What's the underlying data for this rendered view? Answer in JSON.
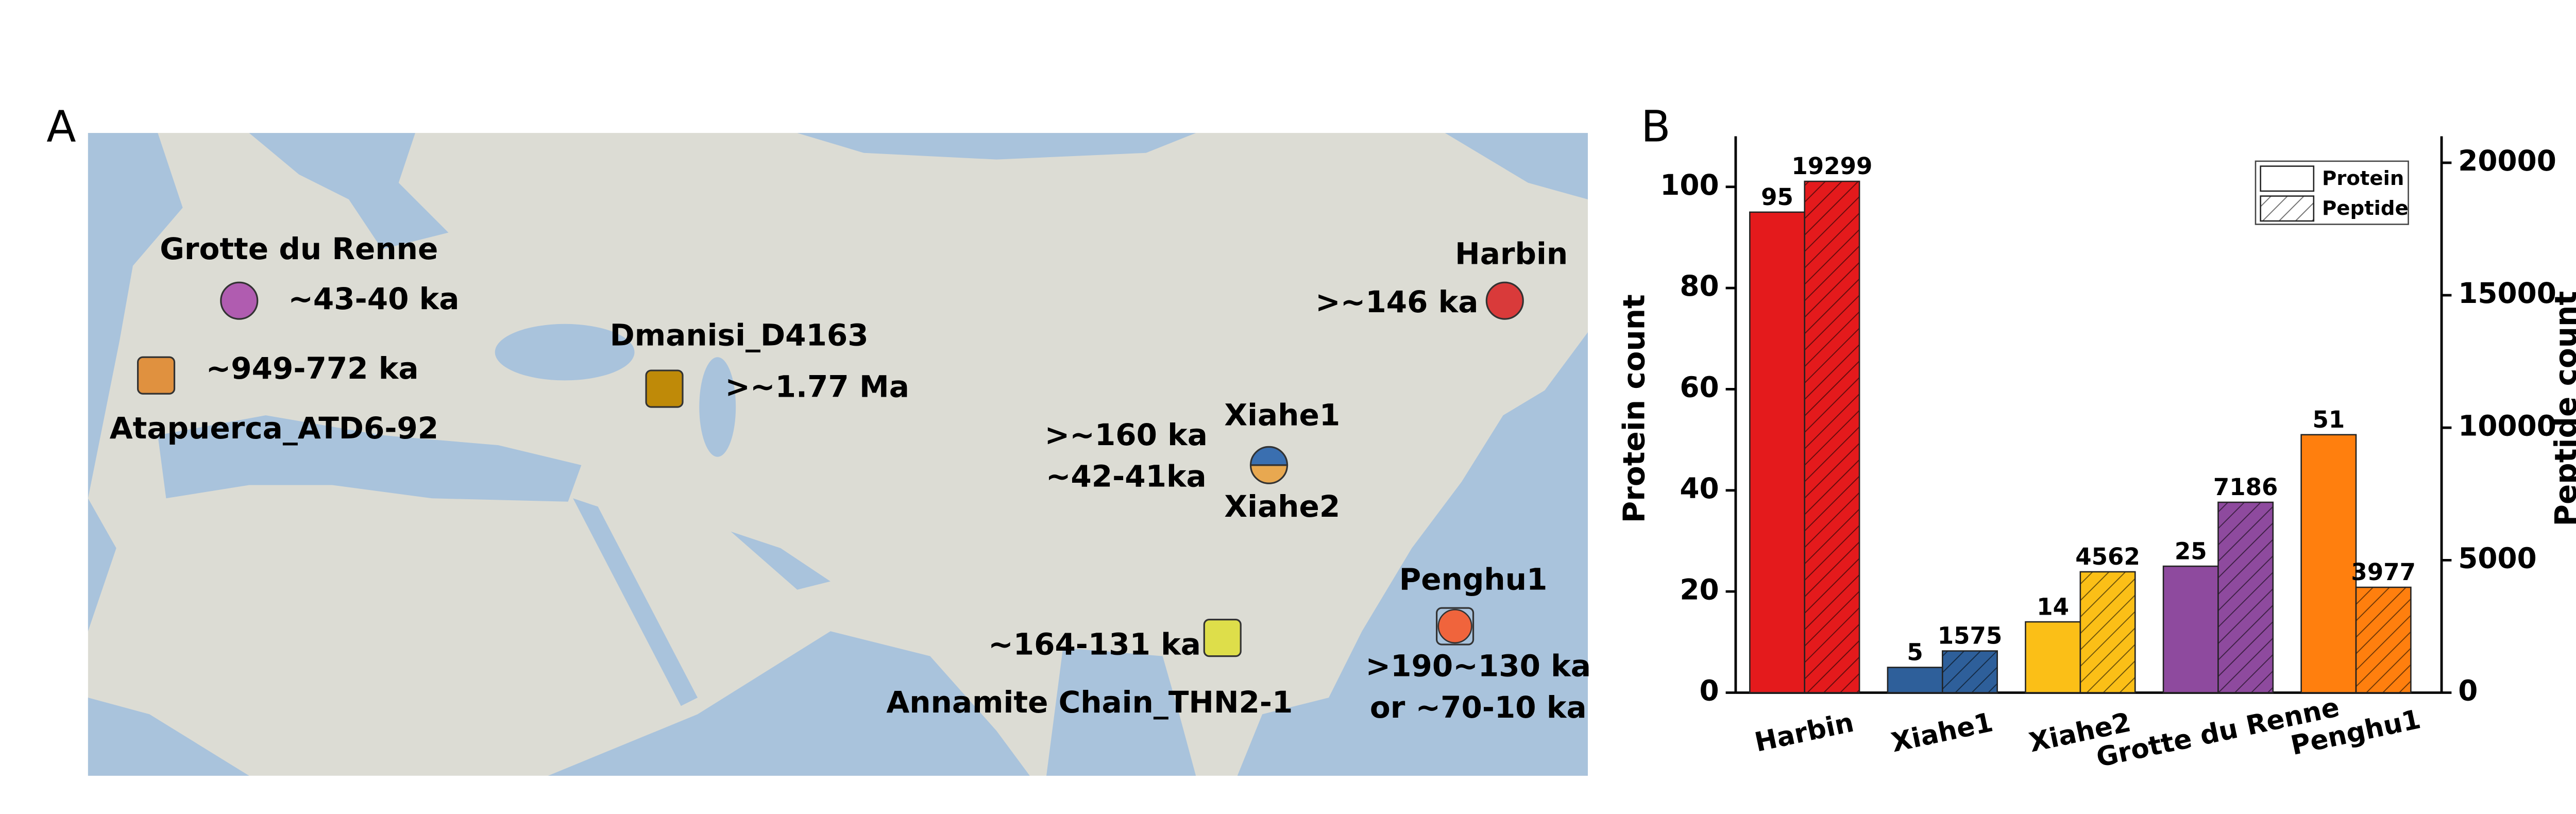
{
  "panel_a": {
    "label": "A",
    "sites": [
      {
        "name": "Grotte du Renne",
        "ages": [
          "~43-40 ka"
        ],
        "color": "#b05cb0"
      },
      {
        "name": "Atapuerca_ATD6-92",
        "ages": [
          "~949-772 ka"
        ],
        "color": "#e0913f"
      },
      {
        "name": "Dmanisi_D4163",
        "ages": [
          ">~1.77 Ma"
        ],
        "color": "#bf8a08"
      },
      {
        "name": "Harbin",
        "ages": [
          ">~146 ka"
        ],
        "color": "#d93a3a"
      },
      {
        "name": "Xiahe1",
        "ages": [
          ">~160 ka"
        ],
        "color": "#3a6fb0"
      },
      {
        "name": "Xiahe2",
        "ages": [
          "~42-41ka"
        ],
        "color": "#e8a850"
      },
      {
        "name": "Annamite Chain_THN2-1",
        "ages": [
          "~164-131 ka"
        ],
        "color": "#dede4a"
      },
      {
        "name": "Penghu1",
        "ages": [
          ">190~130 ka",
          "or ~70-10 ka"
        ],
        "color": "#f0643c"
      }
    ]
  },
  "chart_data": {
    "type": "bar",
    "panel_label": "B",
    "categories": [
      "Harbin",
      "Xiahe1",
      "Xiahe2",
      "Grotte du Renne",
      "Penghu1"
    ],
    "colors": [
      "#e41a1c",
      "#2e5f9a",
      "#fbbf17",
      "#8e4a9e",
      "#ff7f0e"
    ],
    "series": [
      {
        "name": "Protein",
        "values": [
          95,
          5,
          14,
          25,
          51
        ],
        "axis": "y"
      },
      {
        "name": "Peptide",
        "values": [
          19299,
          1575,
          4562,
          7186,
          3977
        ],
        "axis": "y2",
        "hatch": true
      }
    ],
    "ylabel": "Protein count",
    "y2label": "Peptide count",
    "ylim": [
      0,
      110
    ],
    "yticks": [
      0,
      20,
      40,
      60,
      80,
      100
    ],
    "y2lim": [
      0,
      21000
    ],
    "y2ticks": [
      0,
      5000,
      10000,
      15000,
      20000
    ],
    "legend": "upper right"
  }
}
